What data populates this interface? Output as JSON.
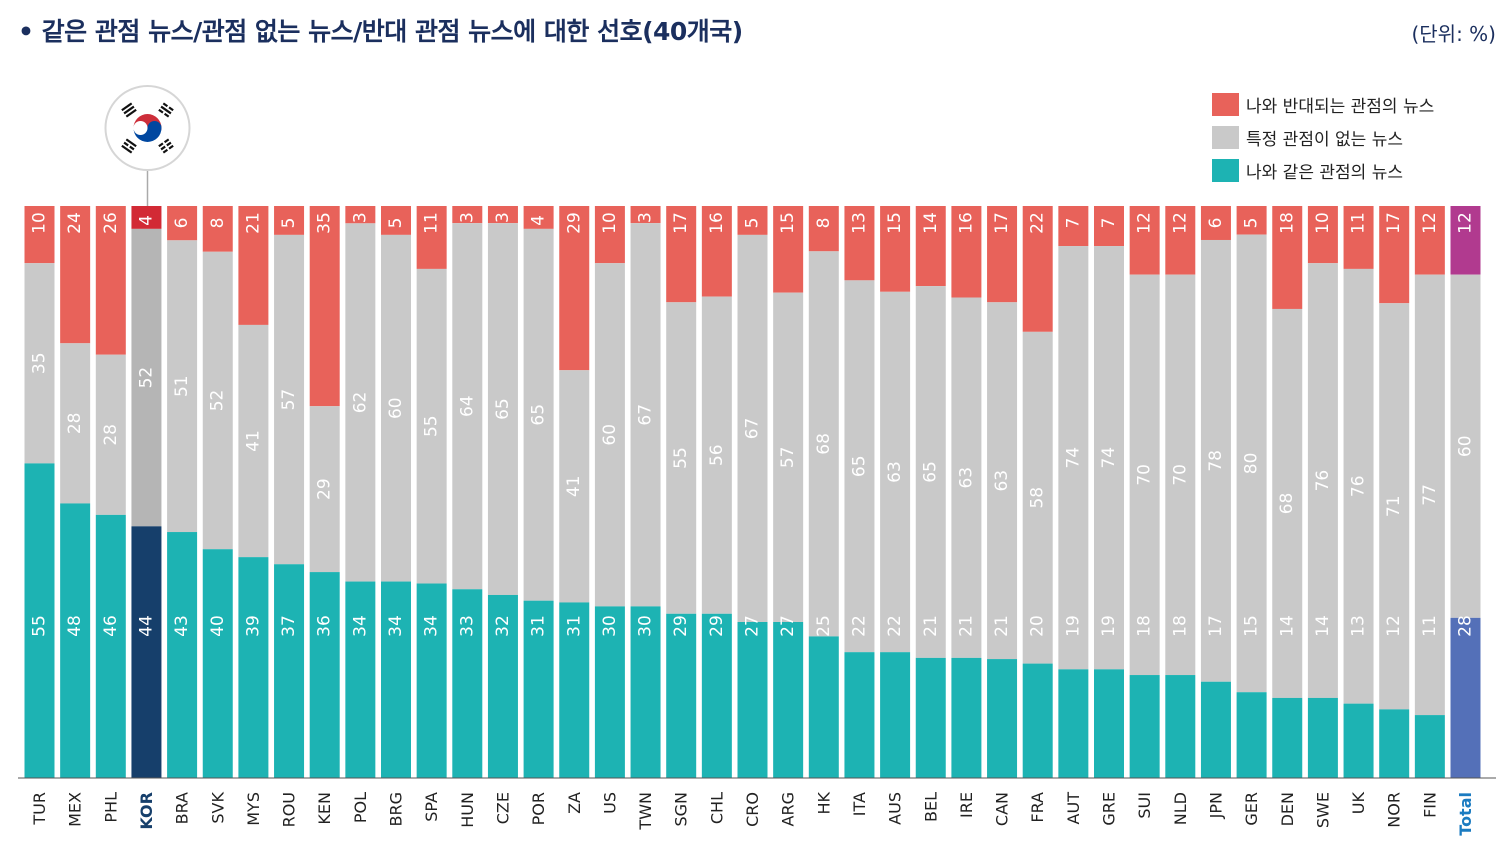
{
  "title": "• 같은 관점 뉴스/관점 없는 뉴스/반대 관점 뉴스에 대한 선호(40개국)",
  "unit_label": "(단위: %)",
  "colors": {
    "same": "#1db3b3",
    "none": "#c9c9c9",
    "opposite": "#e8625a",
    "kor_same": "#163f6b",
    "kor_none": "#b5b5b5",
    "kor_opposite": "#d22a35",
    "total_same": "#5470b8",
    "total_none": "#c9c9c9",
    "total_opposite": "#b13a8f",
    "highlight_label": "#163f6b",
    "total_label": "#1b7bc1"
  },
  "legend": [
    {
      "key": "opposite",
      "label": "나와 반대되는 관점의 뉴스"
    },
    {
      "key": "none",
      "label": "특정 관점이 없는 뉴스"
    },
    {
      "key": "same",
      "label": "나와 같은 관점의 뉴스"
    }
  ],
  "flag": {
    "icon": "korea-flag-icon"
  },
  "chart_data": {
    "type": "bar",
    "stacked": true,
    "orientation": "vertical",
    "title": "같은 관점 뉴스/관점 없는 뉴스/반대 관점 뉴스에 대한 선호(40개국)",
    "ylabel": "%",
    "ylim": [
      0,
      100
    ],
    "categories": [
      "TUR",
      "MEX",
      "PHL",
      "KOR",
      "BRA",
      "SVK",
      "MYS",
      "ROU",
      "KEN",
      "POL",
      "BRG",
      "SPA",
      "HUN",
      "CZE",
      "POR",
      "ZA",
      "US",
      "TWN",
      "SGN",
      "CHL",
      "CRO",
      "ARG",
      "HK",
      "ITA",
      "AUS",
      "BEL",
      "IRE",
      "CAN",
      "FRA",
      "AUT",
      "GRE",
      "SUI",
      "NLD",
      "JPN",
      "GER",
      "DEN",
      "SWE",
      "UK",
      "NOR",
      "FIN",
      "Total"
    ],
    "highlight": "KOR",
    "total_category": "Total",
    "series": [
      {
        "name": "나와 같은 관점의 뉴스",
        "key": "same",
        "values": [
          55,
          48,
          46,
          44,
          43,
          40,
          39,
          37,
          36,
          34,
          34,
          34,
          33,
          32,
          31,
          31,
          30,
          30,
          29,
          29,
          27,
          27,
          25,
          22,
          22,
          21,
          21,
          21,
          20,
          19,
          19,
          18,
          18,
          17,
          15,
          14,
          14,
          13,
          12,
          11,
          28
        ]
      },
      {
        "name": "특정 관점이 없는 뉴스",
        "key": "none",
        "values": [
          35,
          28,
          28,
          52,
          51,
          52,
          41,
          57,
          29,
          62,
          60,
          55,
          64,
          65,
          65,
          41,
          60,
          67,
          55,
          56,
          67,
          57,
          68,
          65,
          63,
          65,
          63,
          63,
          58,
          74,
          74,
          70,
          70,
          78,
          80,
          68,
          76,
          76,
          71,
          77,
          60
        ]
      },
      {
        "name": "나와 반대되는 관점의 뉴스",
        "key": "opposite",
        "values": [
          10,
          24,
          26,
          4,
          6,
          8,
          21,
          5,
          35,
          3,
          5,
          11,
          3,
          3,
          4,
          29,
          10,
          3,
          17,
          16,
          5,
          15,
          8,
          13,
          15,
          14,
          16,
          17,
          22,
          7,
          7,
          12,
          12,
          6,
          5,
          18,
          10,
          11,
          17,
          12,
          12
        ]
      }
    ]
  }
}
